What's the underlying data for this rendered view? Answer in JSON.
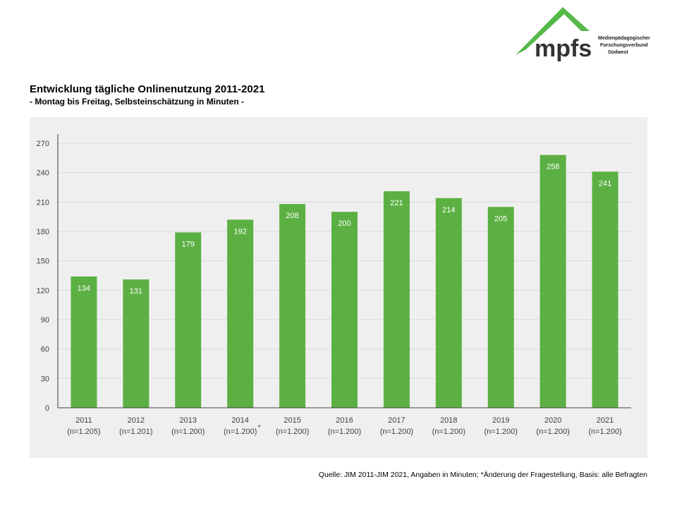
{
  "logo": {
    "name": "mpfs",
    "org_lines": [
      "Medienpädagogischer",
      "Forschungsverbund",
      "Südwest"
    ]
  },
  "header": {
    "title": "Entwicklung tägliche Onlinenutzung 2011-2021",
    "subtitle": "- Montag bis Freitag, Selbsteinschätzung in Minuten -"
  },
  "chart_data": {
    "type": "bar",
    "title": "Entwicklung tägliche Onlinenutzung 2011-2021",
    "subtitle": "- Montag bis Freitag, Selbsteinschätzung in Minuten -",
    "categories": [
      "2011",
      "2012",
      "2013",
      "2014",
      "2015",
      "2016",
      "2017",
      "2018",
      "2019",
      "2020",
      "2021"
    ],
    "sample_sizes": [
      "(n=1.205)",
      "(n=1.201)",
      "(n=1.200)",
      "(n=1.200)",
      "(n=1.200)",
      "(n=1.200)",
      "(n=1.200)",
      "(n=1.200)",
      "(n=1.200)",
      "(n=1.200)",
      "(n=1.200)"
    ],
    "category_marks": [
      "",
      "",
      "",
      "*",
      "",
      "",
      "",
      "",
      "",
      "",
      ""
    ],
    "values": [
      134,
      131,
      179,
      192,
      208,
      200,
      221,
      214,
      205,
      258,
      241
    ],
    "xlabel": "",
    "ylabel": "",
    "ylim": [
      0,
      270
    ],
    "yticks": [
      0,
      30,
      60,
      90,
      120,
      150,
      180,
      210,
      240,
      270
    ],
    "grid": true,
    "legend": "none",
    "bar_color": "#5cb043"
  },
  "colors": {
    "bar": "#5cb043",
    "panel_background": "#efefef",
    "gridline": "#d9d9d9",
    "logo_green": "#55b848",
    "logo_text": "#333333"
  },
  "footer": {
    "source": "Quelle: JIM 2011-JIM 2021, Angaben in Minuten; *Änderung der Fragestellung, Basis: alle Befragten"
  }
}
